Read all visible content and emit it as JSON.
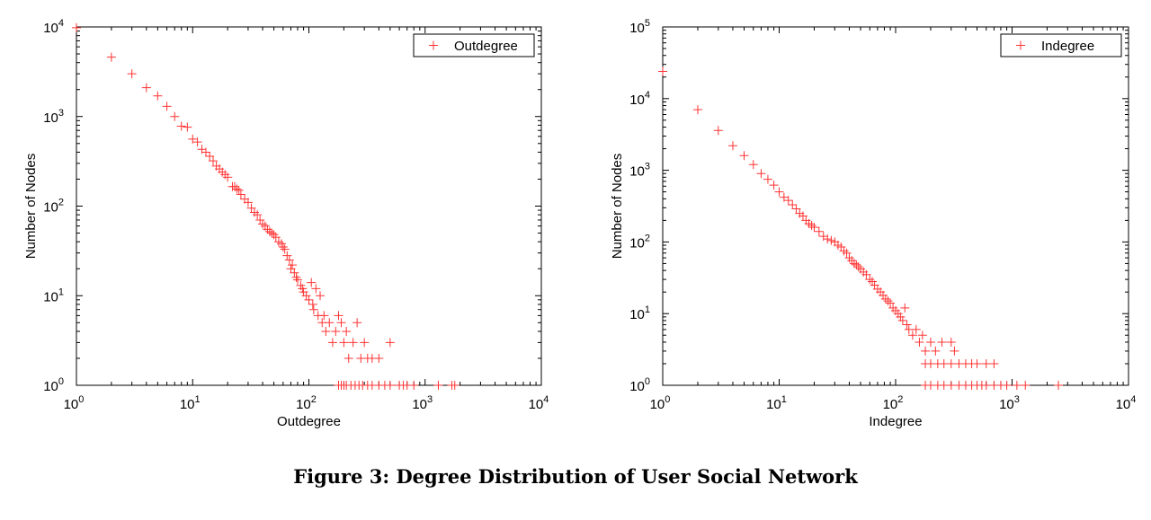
{
  "caption": "Figure 3: Degree Distribution of User Social Network",
  "colors": {
    "marker": "#ff3333",
    "axis": "#000000",
    "background": "#ffffff"
  },
  "chart_data": [
    {
      "type": "scatter",
      "marker": "plus",
      "xscale": "log",
      "yscale": "log",
      "xlim": [
        1,
        10000
      ],
      "ylim": [
        1,
        10000
      ],
      "xlabel": "Outdegree",
      "ylabel": "Number of Nodes",
      "grid": false,
      "legend": "top-right",
      "xticks": [
        1,
        10,
        100,
        1000,
        10000
      ],
      "yticks": [
        1,
        10,
        100,
        1000,
        10000
      ],
      "series": [
        {
          "name": "Outdegree",
          "points": [
            [
              1,
              9800
            ],
            [
              2,
              4600
            ],
            [
              3,
              3000
            ],
            [
              4,
              2100
            ],
            [
              5,
              1700
            ],
            [
              6,
              1300
            ],
            [
              7,
              1000
            ],
            [
              8,
              780
            ],
            [
              9,
              760
            ],
            [
              10,
              560
            ],
            [
              11,
              520
            ],
            [
              12,
              430
            ],
            [
              13,
              400
            ],
            [
              14,
              360
            ],
            [
              15,
              320
            ],
            [
              16,
              280
            ],
            [
              17,
              260
            ],
            [
              18,
              240
            ],
            [
              19,
              225
            ],
            [
              20,
              210
            ],
            [
              22,
              165
            ],
            [
              23,
              165
            ],
            [
              24,
              155
            ],
            [
              25,
              150
            ],
            [
              26,
              135
            ],
            [
              28,
              120
            ],
            [
              30,
              110
            ],
            [
              32,
              95
            ],
            [
              34,
              85
            ],
            [
              36,
              80
            ],
            [
              38,
              70
            ],
            [
              40,
              63
            ],
            [
              42,
              60
            ],
            [
              44,
              55
            ],
            [
              46,
              52
            ],
            [
              48,
              50
            ],
            [
              50,
              48
            ],
            [
              52,
              45
            ],
            [
              55,
              40
            ],
            [
              58,
              38
            ],
            [
              60,
              35
            ],
            [
              62,
              33
            ],
            [
              65,
              28
            ],
            [
              68,
              25
            ],
            [
              70,
              20
            ],
            [
              72,
              22
            ],
            [
              75,
              18
            ],
            [
              78,
              16
            ],
            [
              80,
              15
            ],
            [
              85,
              13
            ],
            [
              88,
              12
            ],
            [
              90,
              11
            ],
            [
              95,
              10
            ],
            [
              100,
              9
            ],
            [
              105,
              14
            ],
            [
              108,
              8
            ],
            [
              110,
              7
            ],
            [
              115,
              12
            ],
            [
              120,
              6
            ],
            [
              125,
              10
            ],
            [
              130,
              5
            ],
            [
              135,
              6
            ],
            [
              140,
              4
            ],
            [
              150,
              5
            ],
            [
              160,
              3
            ],
            [
              170,
              4
            ],
            [
              180,
              6
            ],
            [
              190,
              5
            ],
            [
              200,
              3
            ],
            [
              210,
              4
            ],
            [
              220,
              2
            ],
            [
              240,
              3
            ],
            [
              260,
              5
            ],
            [
              280,
              2
            ],
            [
              300,
              3
            ],
            [
              320,
              2
            ],
            [
              350,
              2
            ],
            [
              400,
              2
            ],
            [
              500,
              3
            ],
            [
              180,
              1
            ],
            [
              190,
              1
            ],
            [
              200,
              1
            ],
            [
              210,
              1
            ],
            [
              230,
              1
            ],
            [
              250,
              1
            ],
            [
              270,
              1
            ],
            [
              290,
              1
            ],
            [
              320,
              1
            ],
            [
              350,
              1
            ],
            [
              400,
              1
            ],
            [
              450,
              1
            ],
            [
              500,
              1
            ],
            [
              600,
              1
            ],
            [
              650,
              1
            ],
            [
              700,
              1
            ],
            [
              800,
              1
            ],
            [
              1300,
              1
            ],
            [
              1700,
              1
            ],
            [
              1800,
              1
            ]
          ]
        }
      ]
    },
    {
      "type": "scatter",
      "marker": "plus",
      "xscale": "log",
      "yscale": "log",
      "xlim": [
        1,
        10000
      ],
      "ylim": [
        1,
        100000
      ],
      "xlabel": "Indegree",
      "ylabel": "Number of Nodes",
      "grid": false,
      "legend": "top-right",
      "xticks": [
        1,
        10,
        100,
        1000,
        10000
      ],
      "yticks": [
        1,
        10,
        100,
        1000,
        10000,
        100000
      ],
      "series": [
        {
          "name": "Indegree",
          "points": [
            [
              1,
              24000
            ],
            [
              2,
              7000
            ],
            [
              3,
              3600
            ],
            [
              4,
              2200
            ],
            [
              5,
              1600
            ],
            [
              6,
              1200
            ],
            [
              7,
              900
            ],
            [
              8,
              750
            ],
            [
              9,
              620
            ],
            [
              10,
              500
            ],
            [
              11,
              420
            ],
            [
              12,
              380
            ],
            [
              13,
              330
            ],
            [
              14,
              290
            ],
            [
              15,
              250
            ],
            [
              16,
              230
            ],
            [
              17,
              200
            ],
            [
              18,
              180
            ],
            [
              19,
              170
            ],
            [
              20,
              160
            ],
            [
              22,
              140
            ],
            [
              24,
              120
            ],
            [
              26,
              110
            ],
            [
              28,
              105
            ],
            [
              30,
              100
            ],
            [
              32,
              90
            ],
            [
              34,
              85
            ],
            [
              36,
              75
            ],
            [
              38,
              70
            ],
            [
              40,
              60
            ],
            [
              42,
              55
            ],
            [
              44,
              50
            ],
            [
              46,
              48
            ],
            [
              48,
              45
            ],
            [
              50,
              42
            ],
            [
              53,
              38
            ],
            [
              56,
              35
            ],
            [
              60,
              30
            ],
            [
              63,
              28
            ],
            [
              66,
              25
            ],
            [
              70,
              22
            ],
            [
              74,
              20
            ],
            [
              78,
              18
            ],
            [
              82,
              16
            ],
            [
              86,
              15
            ],
            [
              90,
              14
            ],
            [
              95,
              12
            ],
            [
              100,
              11
            ],
            [
              105,
              10
            ],
            [
              110,
              9
            ],
            [
              115,
              8
            ],
            [
              120,
              12
            ],
            [
              125,
              7
            ],
            [
              130,
              6
            ],
            [
              140,
              5
            ],
            [
              150,
              6
            ],
            [
              160,
              4
            ],
            [
              170,
              5
            ],
            [
              180,
              3
            ],
            [
              200,
              4
            ],
            [
              220,
              3
            ],
            [
              250,
              4
            ],
            [
              300,
              4
            ],
            [
              320,
              3
            ],
            [
              180,
              2
            ],
            [
              200,
              2
            ],
            [
              230,
              2
            ],
            [
              260,
              2
            ],
            [
              300,
              2
            ],
            [
              350,
              2
            ],
            [
              400,
              2
            ],
            [
              450,
              2
            ],
            [
              500,
              2
            ],
            [
              600,
              2
            ],
            [
              700,
              2
            ],
            [
              180,
              1
            ],
            [
              200,
              1
            ],
            [
              230,
              1
            ],
            [
              260,
              1
            ],
            [
              300,
              1
            ],
            [
              350,
              1
            ],
            [
              400,
              1
            ],
            [
              450,
              1
            ],
            [
              500,
              1
            ],
            [
              550,
              1
            ],
            [
              600,
              1
            ],
            [
              700,
              1
            ],
            [
              800,
              1
            ],
            [
              900,
              1
            ],
            [
              1100,
              1
            ],
            [
              1300,
              1
            ],
            [
              2500,
              1
            ]
          ]
        }
      ]
    }
  ]
}
